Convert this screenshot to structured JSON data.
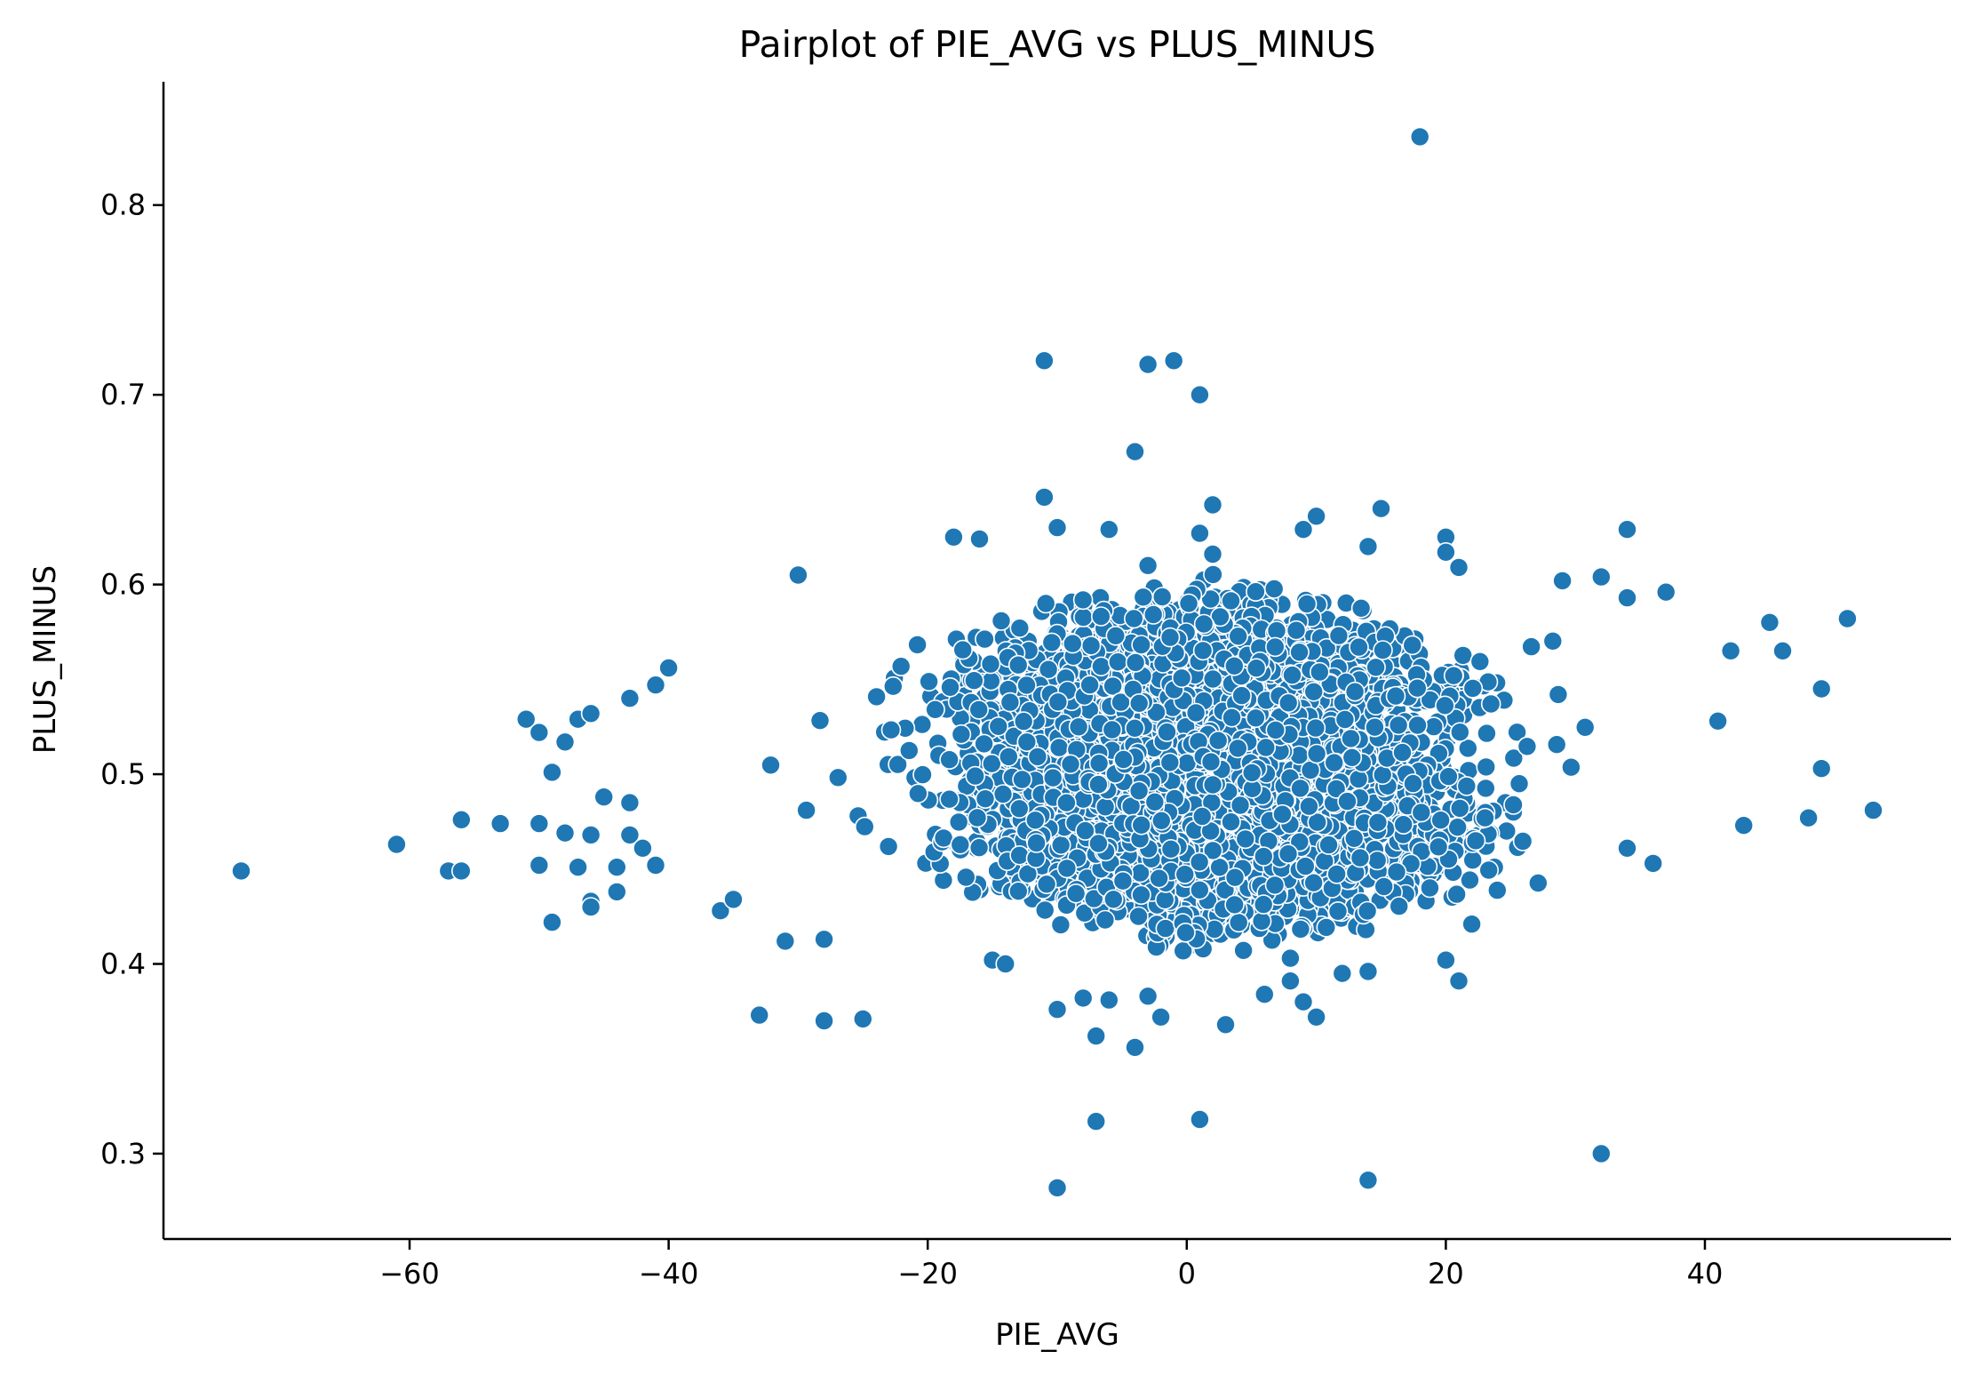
{
  "chart_data": {
    "type": "scatter",
    "title": "Pairplot of PIE_AVG vs PLUS_MINUS",
    "xlabel": "PIE_AVG",
    "ylabel": "PLUS_MINUS",
    "xlim": [
      -79,
      59
    ],
    "ylim": [
      0.255,
      0.865
    ],
    "xticks": [
      -60,
      -40,
      -20,
      0,
      20,
      40
    ],
    "xtick_labels": [
      "−60",
      "−40",
      "−20",
      "0",
      "20",
      "40"
    ],
    "yticks": [
      0.3,
      0.4,
      0.5,
      0.6,
      0.7,
      0.8
    ],
    "ytick_labels": [
      "0.3",
      "0.4",
      "0.5",
      "0.6",
      "0.7",
      "0.8"
    ],
    "grid": false,
    "legend": "none",
    "color": "#1f77b4",
    "outliers": [
      [
        -73,
        0.449
      ],
      [
        -61,
        0.463
      ],
      [
        -57,
        0.449
      ],
      [
        -56,
        0.476
      ],
      [
        -56,
        0.449
      ],
      [
        -53,
        0.474
      ],
      [
        -51,
        0.529
      ],
      [
        -50,
        0.522
      ],
      [
        -50,
        0.474
      ],
      [
        -50,
        0.452
      ],
      [
        -49,
        0.501
      ],
      [
        -49,
        0.422
      ],
      [
        -48,
        0.517
      ],
      [
        -48,
        0.469
      ],
      [
        -47,
        0.529
      ],
      [
        -47,
        0.451
      ],
      [
        -46,
        0.532
      ],
      [
        -46,
        0.468
      ],
      [
        -46,
        0.433
      ],
      [
        -46,
        0.43
      ],
      [
        -45,
        0.488
      ],
      [
        -44,
        0.451
      ],
      [
        -44,
        0.438
      ],
      [
        -43,
        0.54
      ],
      [
        -43,
        0.468
      ],
      [
        -43,
        0.485
      ],
      [
        -42,
        0.461
      ],
      [
        -41,
        0.547
      ],
      [
        -41,
        0.452
      ],
      [
        -40,
        0.556
      ],
      [
        -36,
        0.428
      ],
      [
        -35,
        0.434
      ],
      [
        -33,
        0.373
      ],
      [
        -31,
        0.412
      ],
      [
        -30,
        0.605
      ],
      [
        -28,
        0.37
      ],
      [
        -28,
        0.413
      ],
      [
        -25,
        0.371
      ],
      [
        -18,
        0.625
      ],
      [
        -16,
        0.624
      ],
      [
        -15,
        0.402
      ],
      [
        -14,
        0.4
      ],
      [
        -11,
        0.718
      ],
      [
        -11,
        0.646
      ],
      [
        -10,
        0.63
      ],
      [
        -10,
        0.376
      ],
      [
        -10,
        0.282
      ],
      [
        -8,
        0.382
      ],
      [
        -7,
        0.362
      ],
      [
        -7,
        0.317
      ],
      [
        -6,
        0.381
      ],
      [
        -6,
        0.629
      ],
      [
        -4,
        0.67
      ],
      [
        -4,
        0.356
      ],
      [
        -3,
        0.716
      ],
      [
        -3,
        0.61
      ],
      [
        -3,
        0.383
      ],
      [
        -2,
        0.372
      ],
      [
        -1,
        0.718
      ],
      [
        1,
        0.7
      ],
      [
        1,
        0.627
      ],
      [
        1,
        0.318
      ],
      [
        2,
        0.642
      ],
      [
        2,
        0.616
      ],
      [
        3,
        0.368
      ],
      [
        6,
        0.384
      ],
      [
        8,
        0.391
      ],
      [
        8,
        0.403
      ],
      [
        9,
        0.629
      ],
      [
        9,
        0.38
      ],
      [
        10,
        0.372
      ],
      [
        10,
        0.636
      ],
      [
        12,
        0.395
      ],
      [
        14,
        0.62
      ],
      [
        14,
        0.396
      ],
      [
        14,
        0.286
      ],
      [
        15,
        0.64
      ],
      [
        18,
        0.836
      ],
      [
        20,
        0.625
      ],
      [
        20,
        0.617
      ],
      [
        20,
        0.402
      ],
      [
        21,
        0.609
      ],
      [
        21,
        0.391
      ],
      [
        22,
        0.421
      ],
      [
        29,
        0.602
      ],
      [
        32,
        0.604
      ],
      [
        32,
        0.3
      ],
      [
        34,
        0.629
      ],
      [
        34,
        0.593
      ],
      [
        34,
        0.461
      ],
      [
        36,
        0.453
      ],
      [
        37,
        0.596
      ],
      [
        41,
        0.528
      ],
      [
        42,
        0.565
      ],
      [
        43,
        0.473
      ],
      [
        45,
        0.58
      ],
      [
        46,
        0.565
      ],
      [
        48,
        0.477
      ],
      [
        49,
        0.545
      ],
      [
        49,
        0.503
      ],
      [
        51,
        0.582
      ],
      [
        53,
        0.481
      ]
    ],
    "core_cluster": {
      "count": 3800,
      "center": [
        2,
        0.505
      ],
      "x_range": [
        -40,
        44
      ],
      "y_half_height_at_center": 0.105,
      "y_half_height_at_edges": 0.045,
      "seed": 1234
    }
  }
}
